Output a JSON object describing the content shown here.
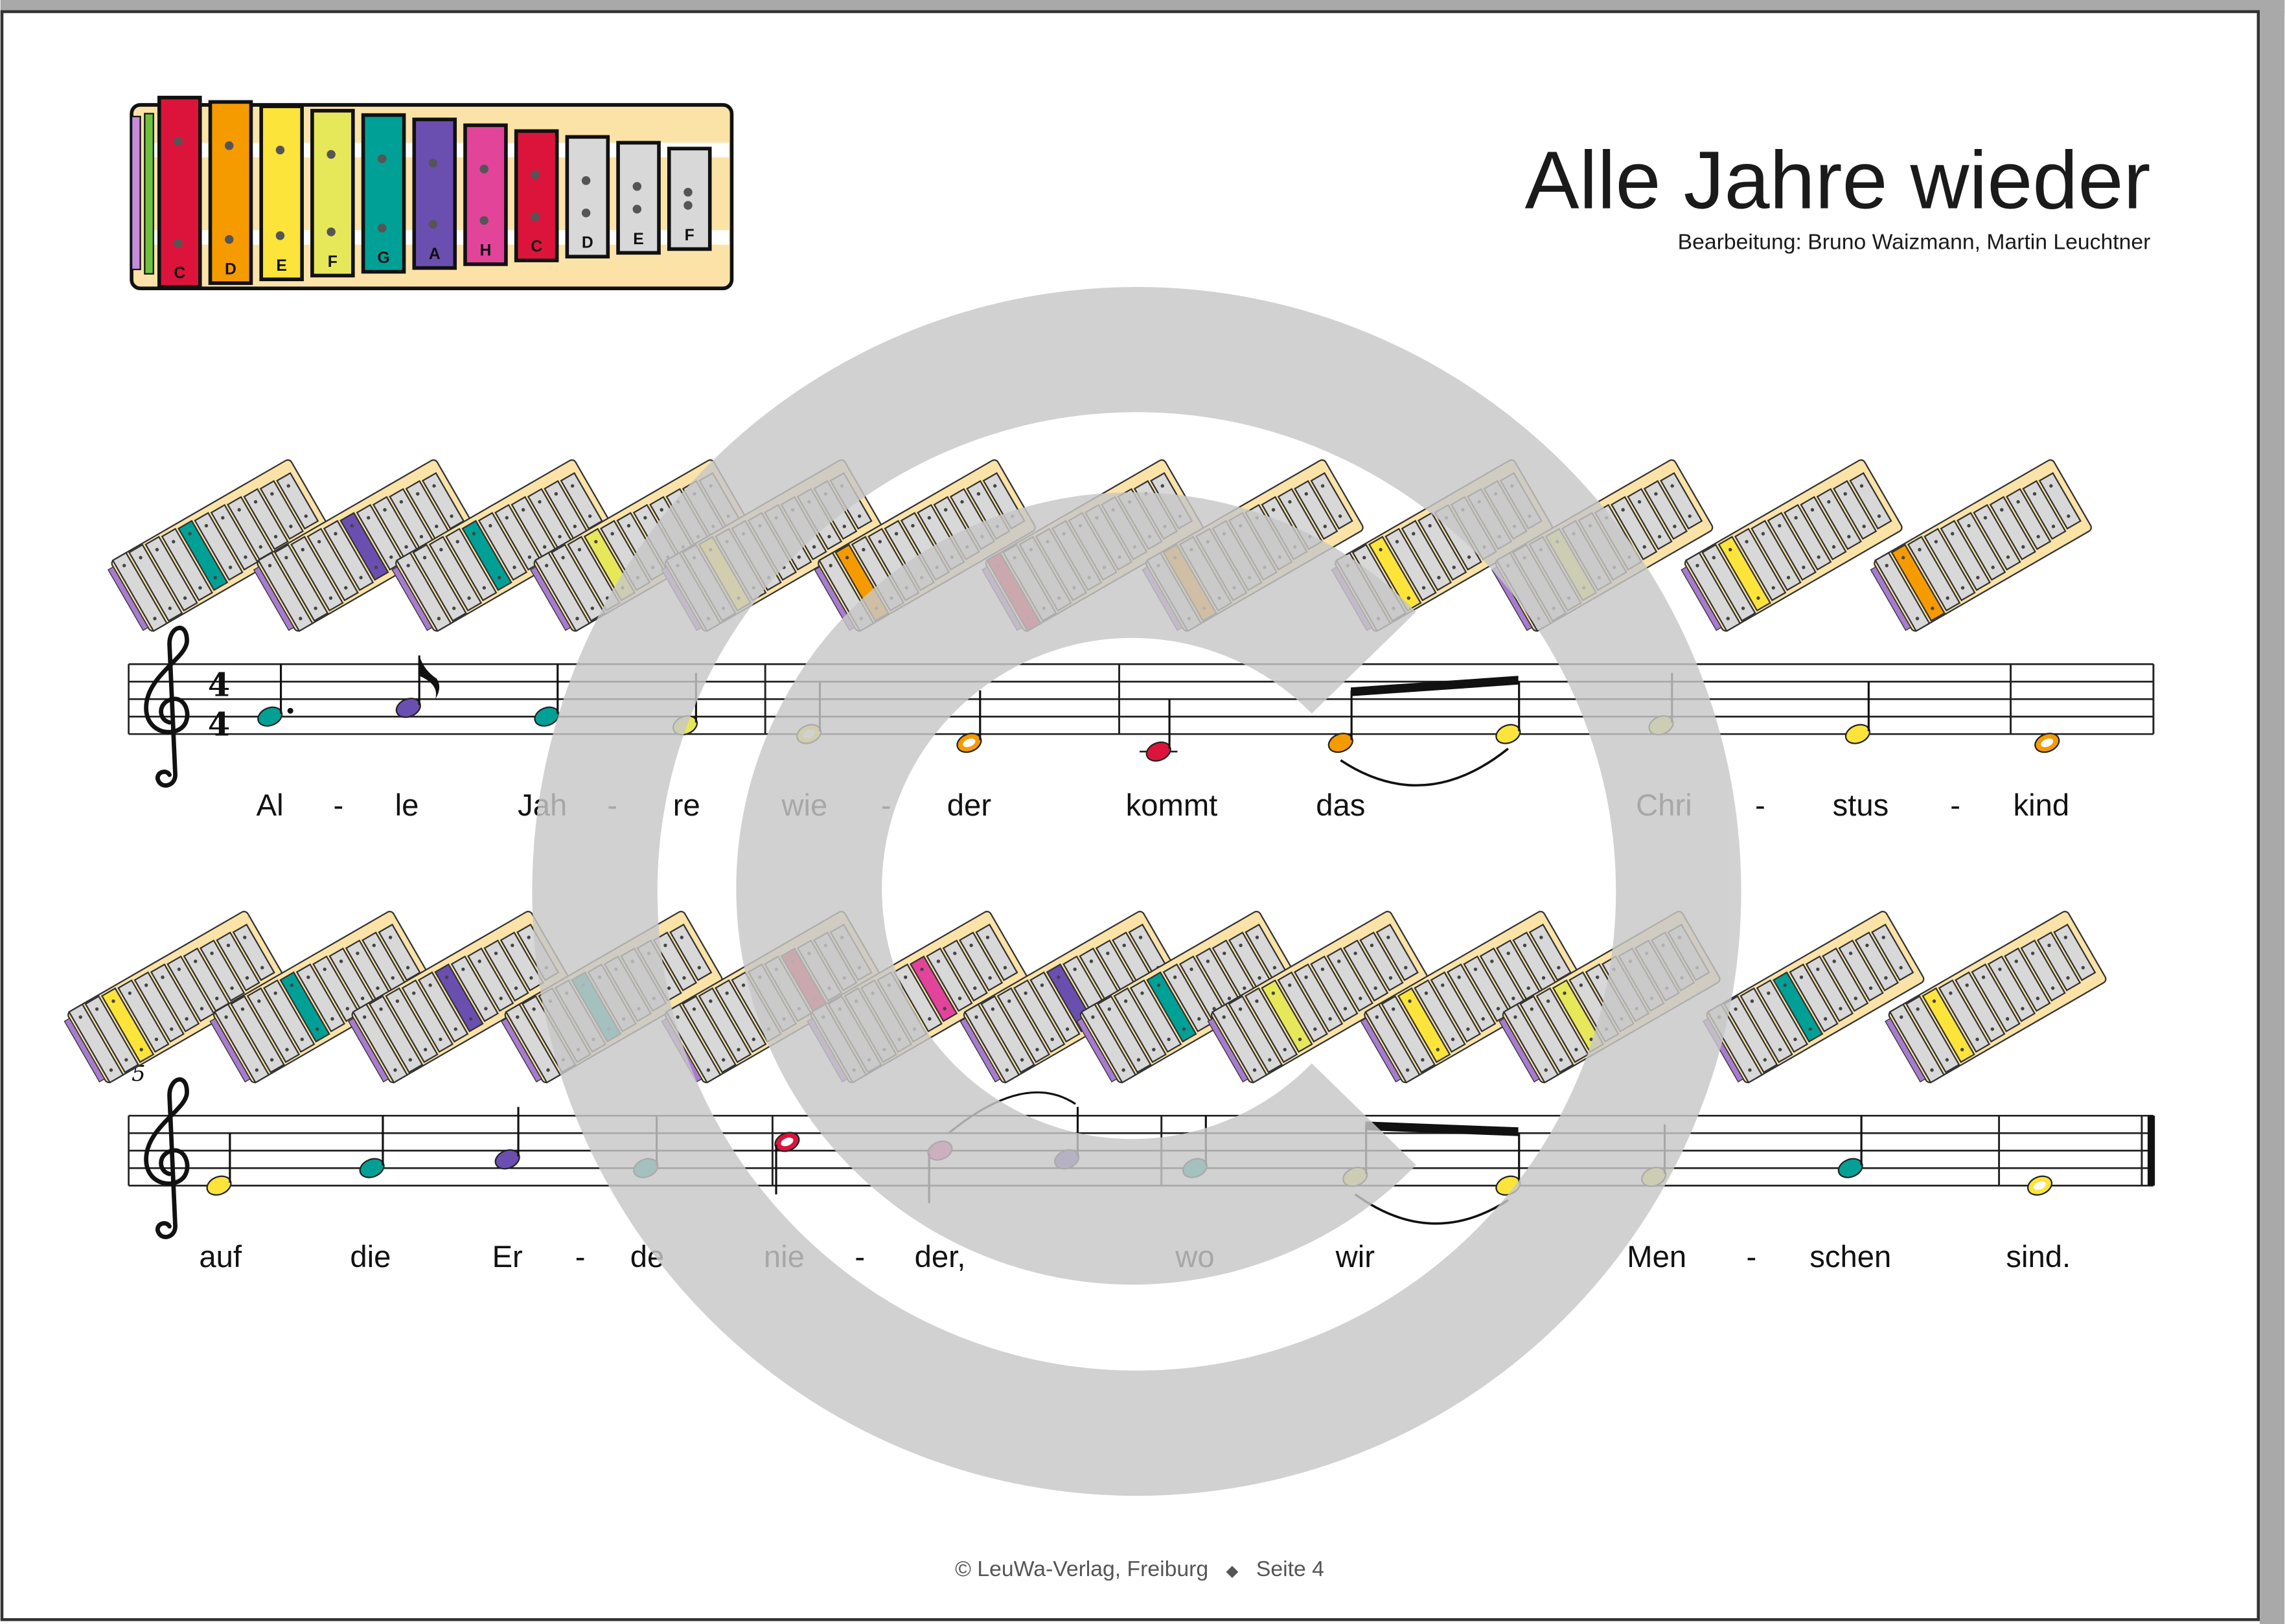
{
  "header": {
    "title": "Alle Jahre wieder",
    "subtitle": "Bearbeitung: Bruno Waizmann, Martin Leuchtner"
  },
  "legend": {
    "bars": [
      {
        "label": "C",
        "color": "#dc143c"
      },
      {
        "label": "D",
        "color": "#f59b00"
      },
      {
        "label": "E",
        "color": "#fde43a"
      },
      {
        "label": "F",
        "color": "#e6e85a"
      },
      {
        "label": "G",
        "color": "#00a096"
      },
      {
        "label": "A",
        "color": "#6a4fb0"
      },
      {
        "label": "H",
        "color": "#e2449a"
      },
      {
        "label": "C",
        "color": "#dc143c"
      },
      {
        "label": "D",
        "color": "#d8d8d8"
      },
      {
        "label": "E",
        "color": "#d8d8d8"
      },
      {
        "label": "F",
        "color": "#d8d8d8"
      }
    ]
  },
  "pitch_colors": {
    "C": "#dc143c",
    "D": "#f59b00",
    "E": "#fde43a",
    "F": "#e6e85a",
    "G": "#00a096",
    "A": "#6a4fb0",
    "H": "#e2449a",
    "C2": "#dc143c"
  },
  "score": {
    "time_signature": {
      "top": "4",
      "bottom": "4"
    },
    "systems": [
      {
        "measure_number": "",
        "notes": [
          {
            "pitch": "G",
            "duration": "dotted-quarter"
          },
          {
            "pitch": "A",
            "duration": "eighth"
          },
          {
            "pitch": "G",
            "duration": "quarter"
          },
          {
            "pitch": "F",
            "duration": "quarter"
          },
          {
            "pitch": "E",
            "duration": "half"
          },
          {
            "pitch": "D",
            "duration": "half"
          },
          {
            "pitch": "C",
            "duration": "quarter"
          },
          {
            "pitch": "D",
            "duration": "eighth"
          },
          {
            "pitch": "E",
            "duration": "eighth"
          },
          {
            "pitch": "F",
            "duration": "quarter"
          },
          {
            "pitch": "E",
            "duration": "quarter"
          },
          {
            "pitch": "D",
            "duration": "whole"
          }
        ],
        "lyrics": [
          "Al",
          "-",
          "le",
          "Jah",
          "-",
          "re",
          "wie",
          "-",
          "der",
          "kommt",
          "das",
          "Chri",
          "-",
          "stus",
          "-",
          "kind"
        ]
      },
      {
        "measure_number": "5",
        "notes": [
          {
            "pitch": "E",
            "duration": "quarter"
          },
          {
            "pitch": "G",
            "duration": "quarter"
          },
          {
            "pitch": "A",
            "duration": "quarter"
          },
          {
            "pitch": "G",
            "duration": "quarter"
          },
          {
            "pitch": "C2",
            "duration": "half"
          },
          {
            "pitch": "H",
            "duration": "quarter"
          },
          {
            "pitch": "A",
            "duration": "quarter"
          },
          {
            "pitch": "G",
            "duration": "quarter"
          },
          {
            "pitch": "F",
            "duration": "eighth"
          },
          {
            "pitch": "E",
            "duration": "eighth"
          },
          {
            "pitch": "F",
            "duration": "quarter"
          },
          {
            "pitch": "G",
            "duration": "quarter"
          },
          {
            "pitch": "E",
            "duration": "whole"
          }
        ],
        "lyrics": [
          "auf",
          "die",
          "Er",
          "-",
          "de",
          "nie",
          "-",
          "der,",
          "wo",
          "wir",
          "Men",
          "-",
          "schen",
          "sind."
        ]
      }
    ]
  },
  "footer": {
    "copyright": "© LeuWa-Verlag, Freiburg",
    "separator": "◆",
    "page": "Seite 4"
  },
  "watermark": {
    "symbol": "copyright-symbol",
    "color": "#c8c8c8"
  }
}
